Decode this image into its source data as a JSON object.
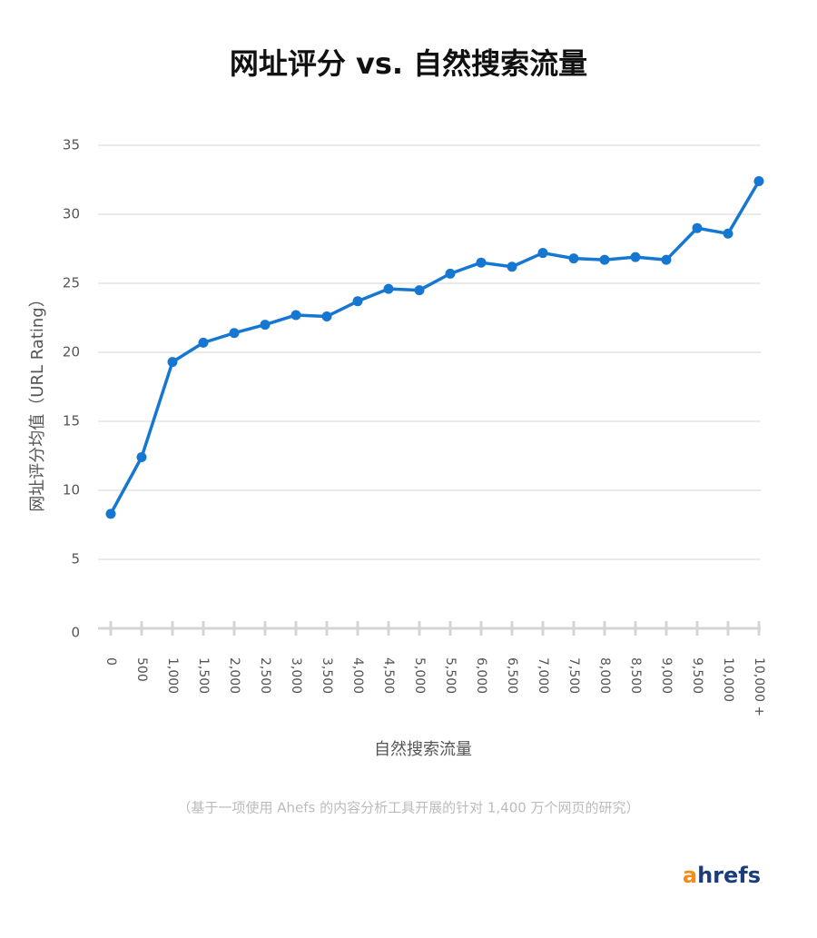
{
  "chart_data": {
    "type": "line",
    "title": "网址评分 vs. 自然搜索流量",
    "y_label": "网址评分均值（URL Rating）",
    "x_label": "自然搜索流量",
    "footnote": "（基于一项使用 Ahefs 的内容分析工具开展的针对 1,400 万个网页的研究）",
    "logo": "ahrefs",
    "categories": [
      "0",
      "500",
      "1,000",
      "1,500",
      "2,000",
      "2,500",
      "3,000",
      "3,500",
      "4,000",
      "4,500",
      "5,000",
      "5,500",
      "6,000",
      "6,500",
      "7,000",
      "7,500",
      "8,000",
      "8,500",
      "9,000",
      "9,500",
      "10,000",
      "10,000 +"
    ],
    "values": [
      8.3,
      12.4,
      19.3,
      20.7,
      21.4,
      22.0,
      22.7,
      22.6,
      23.7,
      24.6,
      24.5,
      25.7,
      26.5,
      26.2,
      27.2,
      26.8,
      26.7,
      26.9,
      26.7,
      29.0,
      28.6,
      32.4
    ],
    "color": "#1677d2",
    "ylim": [
      0,
      35
    ],
    "yticks": [
      0,
      5,
      10,
      15,
      20,
      25,
      30,
      35
    ],
    "grid": true
  }
}
